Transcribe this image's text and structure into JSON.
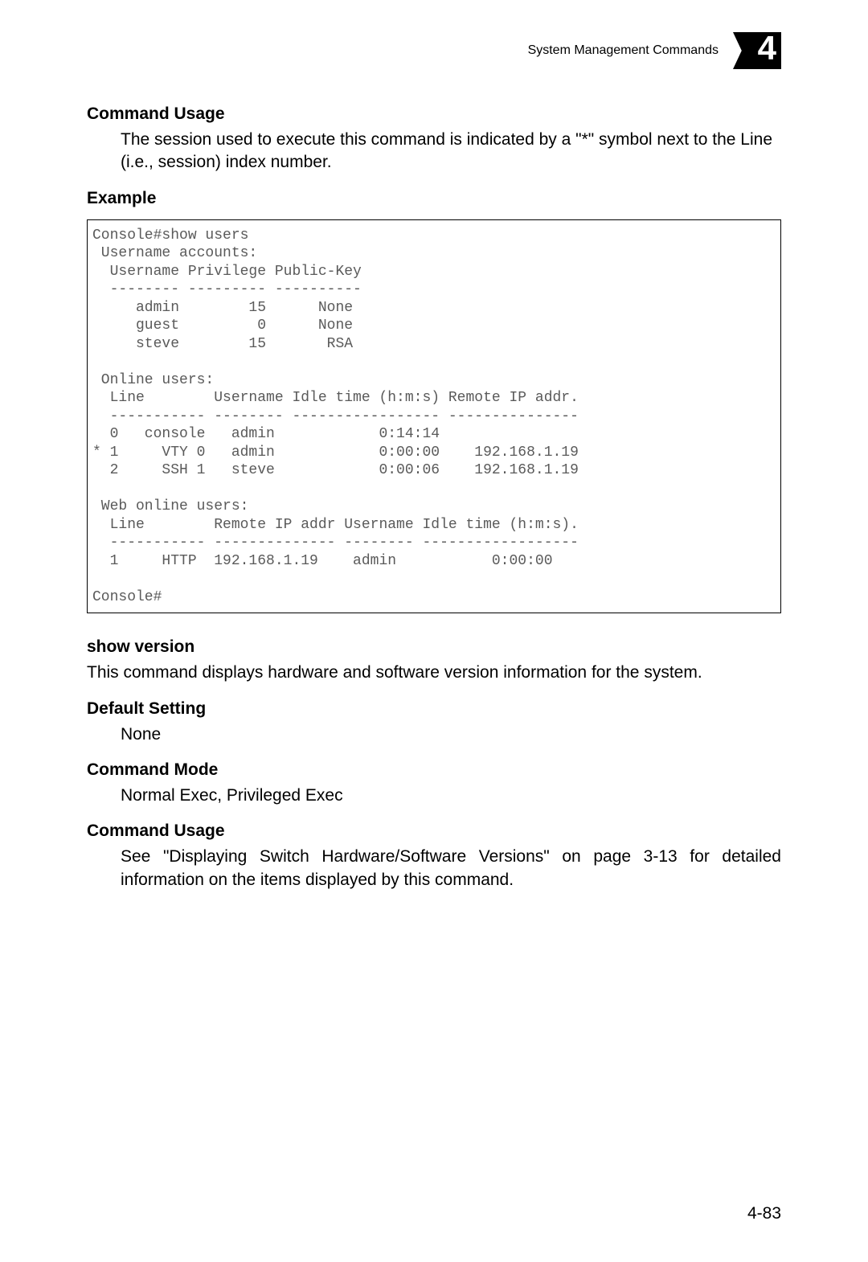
{
  "header": {
    "title": "System Management Commands",
    "chapter_number": "4"
  },
  "sections": {
    "command_usage_1": {
      "heading": "Command Usage",
      "text": "The session used to execute this command is indicated by a \"*\" symbol next to the Line (i.e., session) index number."
    },
    "example": {
      "heading": "Example",
      "code": "Console#show users\n Username accounts:\n  Username Privilege Public-Key\n  -------- --------- ----------\n     admin        15      None\n     guest         0      None\n     steve        15       RSA\n\n Online users:\n  Line        Username Idle time (h:m:s) Remote IP addr.\n  ----------- -------- ----------------- ---------------\n  0   console   admin            0:14:14\n* 1     VTY 0   admin            0:00:00    192.168.1.19\n  2     SSH 1   steve            0:00:06    192.168.1.19\n\n Web online users:\n  Line        Remote IP addr Username Idle time (h:m:s).\n  ----------- -------------- -------- ------------------\n  1     HTTP  192.168.1.19    admin           0:00:00\n\nConsole#"
    },
    "show_version": {
      "heading": "show version",
      "text": "This command displays hardware and software version information for the system."
    },
    "default_setting": {
      "heading": "Default Setting",
      "text": "None"
    },
    "command_mode": {
      "heading": "Command Mode",
      "text": "Normal Exec, Privileged Exec"
    },
    "command_usage_2": {
      "heading": "Command Usage",
      "text": "See \"Displaying Switch Hardware/Software Versions\" on page 3-13 for detailed information on the items displayed by this command."
    }
  },
  "page_number": "4-83",
  "styles": {
    "font_body_size_pt": 16,
    "font_code_size_pt": 13,
    "code_text_color": "#5a5a5a",
    "border_color": "#000000",
    "background_color": "#ffffff"
  }
}
